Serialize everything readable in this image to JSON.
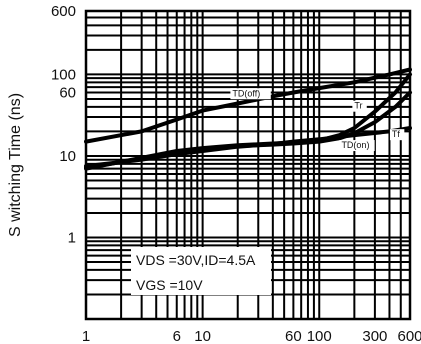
{
  "chart_data": {
    "type": "line",
    "title": "",
    "xlabel": "",
    "ylabel": "S witching Time (ns)",
    "x_scale": "log",
    "y_scale": "log",
    "xlim": [
      1,
      600
    ],
    "ylim": [
      0.1,
      600
    ],
    "grid": true,
    "x_ticks": [
      {
        "value": 1,
        "label": "1"
      },
      {
        "value": 6,
        "label": "6"
      },
      {
        "value": 10,
        "label": "10"
      },
      {
        "value": 60,
        "label": "60"
      },
      {
        "value": 100,
        "label": "100"
      },
      {
        "value": 300,
        "label": "300"
      },
      {
        "value": 600,
        "label": "600"
      }
    ],
    "y_ticks": [
      {
        "value": 600,
        "label": "600"
      },
      {
        "value": 100,
        "label": "100"
      },
      {
        "value": 60,
        "label": "60"
      },
      {
        "value": 10,
        "label": "10"
      },
      {
        "value": 1,
        "label": "1"
      }
    ],
    "series": [
      {
        "name": "TD(off)",
        "x": [
          1,
          3,
          6,
          10,
          20,
          40,
          60,
          100,
          200,
          400,
          600
        ],
        "y": [
          15,
          20,
          28,
          36,
          44,
          54,
          60,
          68,
          80,
          100,
          115
        ]
      },
      {
        "name": "Tr",
        "x": [
          1,
          3,
          6,
          10,
          20,
          40,
          60,
          100,
          150,
          200,
          300,
          450,
          600
        ],
        "y": [
          7,
          9.5,
          11.5,
          12.5,
          13.5,
          14.2,
          14.6,
          15.5,
          18,
          22,
          35,
          60,
          100
        ]
      },
      {
        "name": "TD(on)",
        "x": [
          1,
          3,
          6,
          10,
          20,
          40,
          60,
          100,
          200,
          400,
          600
        ],
        "y": [
          7.5,
          9,
          10.5,
          11.5,
          13,
          14,
          15,
          16,
          18,
          20,
          22
        ]
      },
      {
        "name": "Tf",
        "x": [
          1,
          3,
          6,
          10,
          20,
          40,
          60,
          100,
          150,
          200,
          300,
          450,
          600
        ],
        "y": [
          7.2,
          9.2,
          11,
          12,
          13.2,
          13.8,
          14.2,
          15,
          16.5,
          19,
          26,
          40,
          60
        ]
      }
    ],
    "annotation": {
      "lines": [
        "VDS =30V,ID=4.5A",
        "VGS =10V"
      ]
    }
  }
}
